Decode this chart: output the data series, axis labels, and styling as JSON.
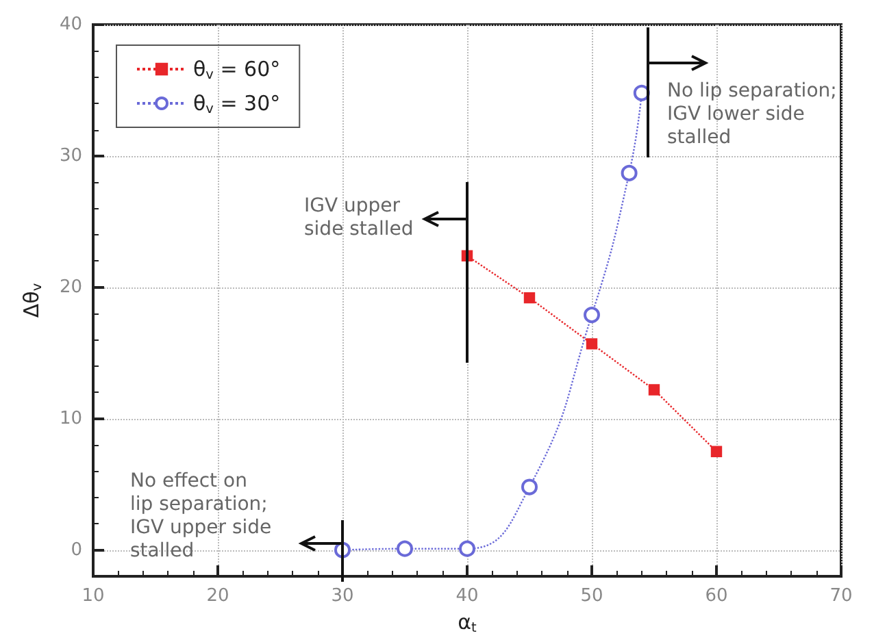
{
  "chart_data": {
    "type": "line",
    "xlabel": "α$_{t}$",
    "ylabel": "Δθ$_{v}$",
    "xlim": [
      10,
      70
    ],
    "ylim": [
      -2,
      40
    ],
    "xticks": [
      10,
      20,
      30,
      40,
      50,
      60,
      70
    ],
    "yticks": [
      0,
      10,
      20,
      30,
      40
    ],
    "grid": true,
    "legend": "top left",
    "line_style": "dotted",
    "series": [
      {
        "name": "θ$_{v}$ = 60°",
        "color": "#e8262a",
        "marker": "square",
        "x": [
          40,
          45,
          50,
          55,
          60
        ],
        "values": [
          22.4,
          19.2,
          15.7,
          12.2,
          7.5
        ]
      },
      {
        "name": "θ$_{v}$ = 30°",
        "color": "#6a6ad8",
        "marker": "circle",
        "x": [
          30,
          35,
          40,
          45,
          50,
          53,
          54
        ],
        "values": [
          0,
          0.1,
          0.1,
          4.8,
          17.9,
          28.7,
          34.8
        ]
      }
    ],
    "annotations": [
      "IGV upper\nside stalled",
      "No lip separation;\nIGV lower side\nstalled",
      "No effect on\nlip separation;\nIGV upper side\nstalled"
    ]
  }
}
